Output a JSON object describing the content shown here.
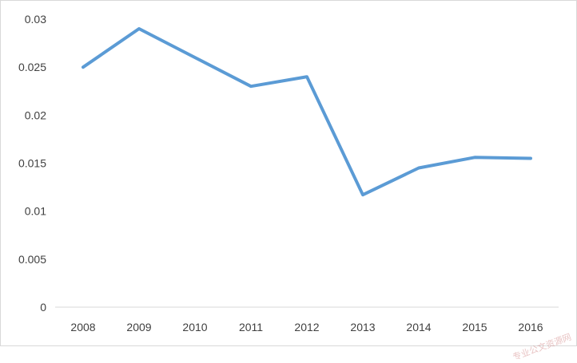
{
  "chart_data": {
    "type": "line",
    "title": "",
    "xlabel": "",
    "ylabel": "",
    "categories": [
      "2008",
      "2009",
      "2010",
      "2011",
      "2012",
      "2013",
      "2014",
      "2015",
      "2016"
    ],
    "series": [
      {
        "values": [
          0.025,
          0.029,
          0.026,
          0.023,
          0.024,
          0.0117,
          0.0145,
          0.0156,
          0.0155
        ]
      }
    ],
    "ylim": [
      0,
      0.03
    ],
    "yticks": [
      "0",
      "0.005",
      "0.01",
      "0.015",
      "0.02",
      "0.025",
      "0.03"
    ],
    "grid": false,
    "legend": "none",
    "line_color": "#5b9bd5",
    "axis_color": "#d9d9d9",
    "text_color": "#404040"
  },
  "watermark": "专业公文资源网"
}
